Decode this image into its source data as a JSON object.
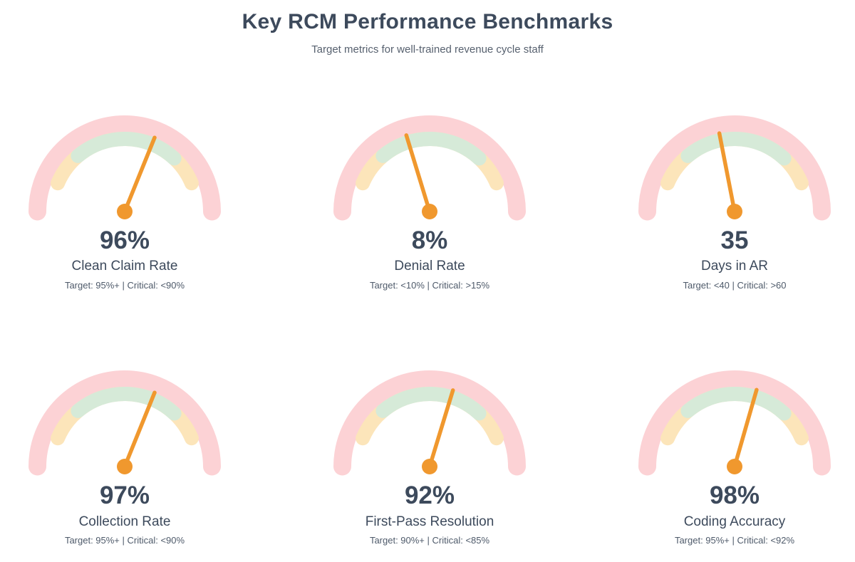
{
  "header": {
    "title": "Key RCM Performance Benchmarks",
    "subtitle": "Target metrics for well-trained revenue cycle staff"
  },
  "colors": {
    "track_pink": "#fcd2d5",
    "warning_band_yellow": "#fce5ba",
    "good_band_green": "#d6ead8",
    "needle_orange": "#f0982e",
    "heading_dark": "#3d4a5c",
    "subtitle_gray": "#57616f",
    "benchmark_gray": "#4e5a6a",
    "background": "#ffffff"
  },
  "gauge_layout": {
    "arc_span_deg": 180,
    "inner_band_span_deg": [
      157,
      23
    ],
    "good_band_span_deg": [
      130,
      47
    ],
    "rows": 2,
    "columns": 3
  },
  "chart_data": [
    {
      "type": "gauge",
      "label": "Clean Claim Rate",
      "value": 96,
      "unit": "%",
      "display_value": "96%",
      "target": "95%+",
      "critical": "<90%",
      "benchmark_note": "Target: 95%+ | Critical: <90%",
      "needle_angle_deg": 22
    },
    {
      "type": "gauge",
      "label": "Denial Rate",
      "value": 8,
      "unit": "%",
      "display_value": "8%",
      "target": "<10%",
      "critical": ">15%",
      "benchmark_note": "Target: <10% | Critical: >15%",
      "needle_angle_deg": -17
    },
    {
      "type": "gauge",
      "label": "Days in AR",
      "value": 35,
      "unit": "",
      "display_value": "35",
      "target": "<40",
      "critical": ">60",
      "benchmark_note": "Target: <40 | Critical: >60",
      "needle_angle_deg": -11
    },
    {
      "type": "gauge",
      "label": "Collection Rate",
      "value": 97,
      "unit": "%",
      "display_value": "97%",
      "target": "95%+",
      "critical": "<90%",
      "benchmark_note": "Target: 95%+ | Critical: <90%",
      "needle_angle_deg": 22
    },
    {
      "type": "gauge",
      "label": "First-Pass Resolution",
      "value": 92,
      "unit": "%",
      "display_value": "92%",
      "target": "90%+",
      "critical": "<85%",
      "benchmark_note": "Target: 90%+ | Critical: <85%",
      "needle_angle_deg": 17
    },
    {
      "type": "gauge",
      "label": "Coding Accuracy",
      "value": 98,
      "unit": "%",
      "display_value": "98%",
      "target": "95%+",
      "critical": "<92%",
      "benchmark_note": "Target: 95%+ | Critical: <92%",
      "needle_angle_deg": 16
    }
  ]
}
